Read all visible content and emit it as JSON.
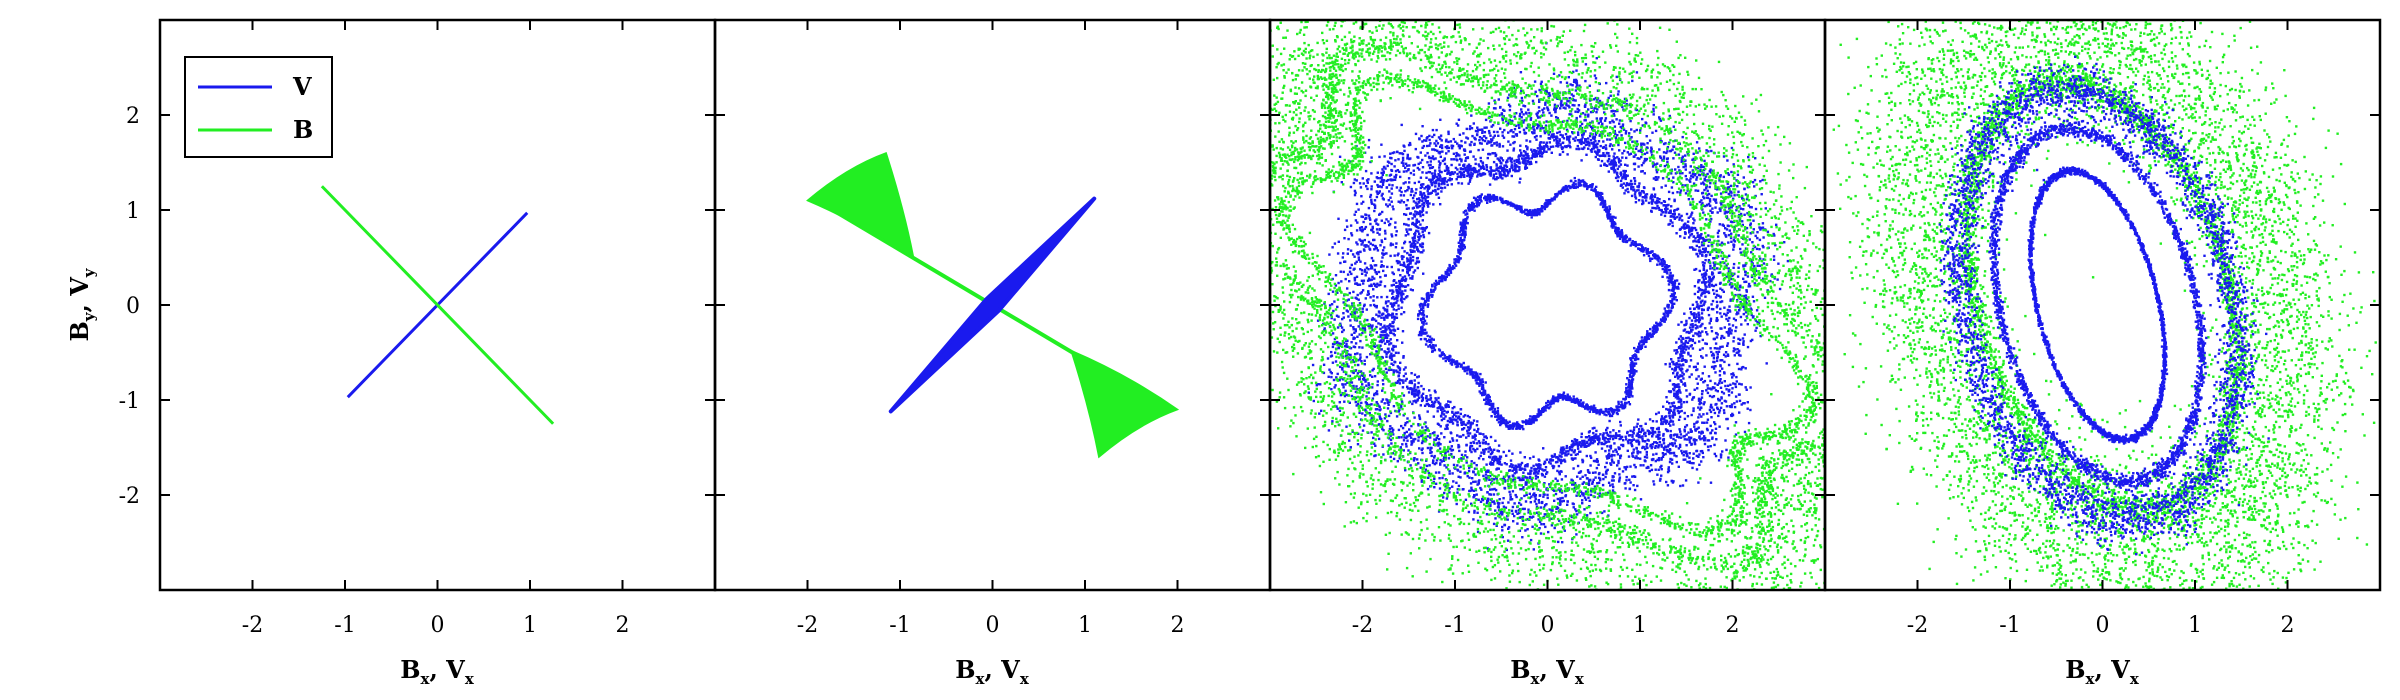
{
  "chart_data": [
    {
      "panel": 1,
      "type": "line",
      "xlabel": "B_x, V_x",
      "ylabel": "B_y, V_y",
      "xlim": [
        -3,
        3
      ],
      "ylim": [
        -3,
        3
      ],
      "xticks": [
        -2,
        -1,
        0,
        1,
        2
      ],
      "yticks": [
        -2,
        -1,
        0,
        1,
        2
      ],
      "xtick_labels": [
        "-2",
        "-1",
        "0",
        "1",
        "2"
      ],
      "ytick_labels": [
        "-2",
        "-1",
        "0",
        "1",
        "2"
      ],
      "legend": {
        "position": "top-left",
        "entries": [
          "V",
          "B"
        ]
      },
      "series": [
        {
          "name": "V",
          "color": "#1a1aee",
          "x": [
            -0.97,
            0.97
          ],
          "y": [
            -0.97,
            0.97
          ]
        },
        {
          "name": "B",
          "color": "#22ee22",
          "x": [
            -1.25,
            1.25
          ],
          "y": [
            1.25,
            -1.25
          ]
        }
      ]
    },
    {
      "panel": 2,
      "type": "scatter",
      "xlabel": "B_x, V_x",
      "xlim": [
        -3,
        3
      ],
      "ylim": [
        -3,
        3
      ],
      "xticks": [
        -2,
        -1,
        0,
        1,
        2
      ],
      "xtick_labels": [
        "-2",
        "-1",
        "0",
        "1",
        "2"
      ],
      "series": [
        {
          "name": "V",
          "color": "#1a1aee",
          "segment": [
            [
              -1.1,
              -1.12
            ],
            [
              1.1,
              1.12
            ]
          ],
          "max_width": 0.18
        },
        {
          "name": "B",
          "color": "#22ee22",
          "segment": [
            [
              -1.9,
              1.1
            ],
            [
              1.9,
              -1.1
            ]
          ],
          "flare_tips": [
            [
              -1.15,
              1.6
            ],
            [
              -2.0,
              1.1
            ],
            [
              1.15,
              -1.6
            ],
            [
              2.0,
              -1.1
            ]
          ]
        }
      ]
    },
    {
      "panel": 3,
      "type": "scatter",
      "xlabel": "B_x, V_x",
      "xlim": [
        -3,
        3
      ],
      "ylim": [
        -3,
        3
      ],
      "xticks": [
        -2,
        -1,
        0,
        1,
        2
      ],
      "xtick_labels": [
        "-2",
        "-1",
        "0",
        "1",
        "2"
      ],
      "series": [
        {
          "name": "V",
          "color": "#1a1aee",
          "rings": [
            {
              "cx": 0.0,
              "cy": 0.0,
              "rx": 1.1,
              "ry": 1.3,
              "tilt": 0.15,
              "lobes": 0.25,
              "width": 0.05
            },
            {
              "cx": 0.0,
              "cy": 0.0,
              "rx": 1.55,
              "ry": 1.75,
              "tilt": 0.3,
              "lobes": 0.15,
              "width": 0.1
            },
            {
              "cx": 0.0,
              "cy": 0.0,
              "rx": 2.0,
              "ry": 2.1,
              "tilt": 0.4,
              "lobes": 0.12,
              "width": 0.25
            }
          ]
        },
        {
          "name": "B",
          "color": "#22ee22",
          "rings": [
            {
              "cx": 0.0,
              "cy": 0.0,
              "rx": 1.6,
              "ry": 3.2,
              "tilt": 0.95,
              "lobes": 0.2,
              "width": 0.06
            },
            {
              "cx": 0.0,
              "cy": 0.0,
              "rx": 1.9,
              "ry": 3.6,
              "tilt": 0.95,
              "lobes": 0.18,
              "width": 0.07
            },
            {
              "cx": 0.0,
              "cy": 0.0,
              "rx": 2.25,
              "ry": 4.0,
              "tilt": 0.95,
              "lobes": 0.15,
              "width": 0.3
            }
          ]
        }
      ]
    },
    {
      "panel": 4,
      "type": "scatter",
      "xlabel": "B_x, V_x",
      "xlim": [
        -3,
        3
      ],
      "ylim": [
        -3,
        3
      ],
      "xticks": [
        -2,
        -1,
        0,
        1,
        2
      ],
      "xtick_labels": [
        "-2",
        "-1",
        "0",
        "1",
        "2"
      ],
      "series": [
        {
          "name": "B",
          "color": "#22ee22",
          "rings": [
            {
              "cx": 0.0,
              "cy": 0.1,
              "rx": 1.9,
              "ry": 2.9,
              "tilt": 0.3,
              "lobes": 0.0,
              "width": 0.55
            },
            {
              "cx": 0.0,
              "cy": 0.1,
              "rx": 1.35,
              "ry": 2.3,
              "tilt": 0.3,
              "lobes": 0.0,
              "width": 0.1
            }
          ]
        },
        {
          "name": "V",
          "color": "#1a1aee",
          "rings": [
            {
              "cx": -0.05,
              "cy": 0.0,
              "rx": 0.65,
              "ry": 1.45,
              "tilt": 0.25,
              "lobes": 0.0,
              "width": 0.04
            },
            {
              "cx": -0.05,
              "cy": 0.0,
              "rx": 1.05,
              "ry": 1.9,
              "tilt": 0.25,
              "lobes": 0.0,
              "width": 0.06
            },
            {
              "cx": -0.05,
              "cy": 0.0,
              "rx": 1.45,
              "ry": 2.3,
              "tilt": 0.25,
              "lobes": 0.0,
              "width": 0.18
            }
          ]
        }
      ]
    }
  ]
}
